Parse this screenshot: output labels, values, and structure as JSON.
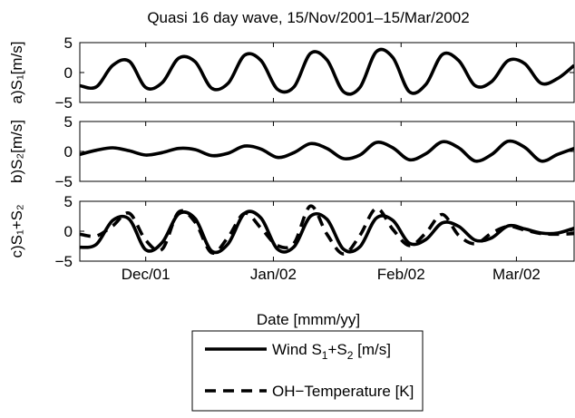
{
  "figure": {
    "title": "Quasi 16 day wave,   15/Nov/2001–15/Mar/2002",
    "xlabel": "Date [mmm/yy]",
    "xticks": [
      "Dec/01",
      "Jan/02",
      "Feb/02",
      "Mar/02"
    ],
    "legend": [
      {
        "label_main": "Wind S",
        "sub1": "1",
        "plus": "+S",
        "sub2": "2",
        "units": " [m/s]",
        "style": "solid"
      },
      {
        "label": "OH−Temperature [K]",
        "style": "dashed"
      }
    ]
  },
  "chart_data": [
    {
      "type": "line",
      "panel": "a",
      "ylabel": "a)S₁[m/s]",
      "ylim": [
        -5,
        5
      ],
      "yticks": [
        "5",
        "0",
        "−5"
      ],
      "x": [
        "2001-11-15",
        "2001-11-19",
        "2001-11-23",
        "2001-11-27",
        "2001-12-01",
        "2001-12-05",
        "2001-12-09",
        "2001-12-13",
        "2001-12-17",
        "2001-12-21",
        "2001-12-25",
        "2001-12-29",
        "2002-01-02",
        "2002-01-06",
        "2002-01-10",
        "2002-01-14",
        "2002-01-18",
        "2002-01-22",
        "2002-01-26",
        "2002-01-30",
        "2002-02-03",
        "2002-02-07",
        "2002-02-11",
        "2002-02-15",
        "2002-02-19",
        "2002-02-23",
        "2002-02-27",
        "2002-03-03",
        "2002-03-07",
        "2002-03-11",
        "2002-03-15"
      ],
      "series": [
        {
          "name": "",
          "style": "solid",
          "values": [
            -2.2,
            -2.4,
            1.2,
            1.9,
            -2.5,
            -1.7,
            2.4,
            1.8,
            -2.6,
            -1.8,
            2.9,
            2.0,
            -2.8,
            -2.4,
            3.2,
            2.1,
            -3.2,
            -2.5,
            3.5,
            2.5,
            -3.2,
            -2.0,
            3.0,
            2.0,
            -2.2,
            -1.5,
            2.0,
            1.5,
            -1.8,
            -1.0,
            1.2
          ]
        }
      ]
    },
    {
      "type": "line",
      "panel": "b",
      "ylabel": "b)S₂[m/s]",
      "ylim": [
        -5,
        5
      ],
      "yticks": [
        "5",
        "0",
        "−5"
      ],
      "x": [
        "2001-11-15",
        "2001-11-19",
        "2001-11-23",
        "2001-11-27",
        "2001-12-01",
        "2001-12-05",
        "2001-12-09",
        "2001-12-13",
        "2001-12-17",
        "2001-12-21",
        "2001-12-25",
        "2001-12-29",
        "2002-01-02",
        "2002-01-06",
        "2002-01-10",
        "2002-01-14",
        "2002-01-18",
        "2002-01-22",
        "2002-01-26",
        "2002-01-30",
        "2002-02-03",
        "2002-02-07",
        "2002-02-11",
        "2002-02-15",
        "2002-02-19",
        "2002-02-23",
        "2002-02-27",
        "2002-03-03",
        "2002-03-07",
        "2002-03-11",
        "2002-03-15"
      ],
      "series": [
        {
          "name": "",
          "style": "solid",
          "values": [
            -0.5,
            0.2,
            0.6,
            0.1,
            -0.6,
            -0.2,
            0.5,
            0.3,
            -0.7,
            -0.3,
            0.9,
            0.4,
            -1.0,
            -0.2,
            1.3,
            0.5,
            -1.2,
            -0.6,
            1.5,
            0.6,
            -1.4,
            -0.4,
            1.6,
            0.6,
            -1.6,
            -0.5,
            1.7,
            0.7,
            -1.6,
            -0.5,
            0.5
          ]
        }
      ]
    },
    {
      "type": "line",
      "panel": "c",
      "ylabel": "c)S₁+S₂",
      "ylim": [
        -5,
        5
      ],
      "yticks": [
        "5",
        "0",
        "−5"
      ],
      "xticks": [
        "Dec/01",
        "Jan/02",
        "Feb/02",
        "Mar/02"
      ],
      "x": [
        "2001-11-15",
        "2001-11-19",
        "2001-11-23",
        "2001-11-27",
        "2001-12-01",
        "2001-12-05",
        "2001-12-09",
        "2001-12-13",
        "2001-12-17",
        "2001-12-21",
        "2001-12-25",
        "2001-12-29",
        "2002-01-02",
        "2002-01-06",
        "2002-01-10",
        "2002-01-14",
        "2002-01-18",
        "2002-01-22",
        "2002-01-26",
        "2002-01-30",
        "2002-02-03",
        "2002-02-07",
        "2002-02-11",
        "2002-02-15",
        "2002-02-19",
        "2002-02-23",
        "2002-02-27",
        "2002-03-03",
        "2002-03-07",
        "2002-03-11",
        "2002-03-15"
      ],
      "series": [
        {
          "name": "Wind S₁+S₂ [m/s]",
          "style": "solid",
          "values": [
            -2.7,
            -2.2,
            1.8,
            2.0,
            -3.1,
            -1.9,
            2.9,
            2.1,
            -3.3,
            -2.1,
            3.0,
            2.2,
            -3.0,
            -2.6,
            2.5,
            2.0,
            -3.0,
            -2.6,
            2.2,
            1.8,
            -2.0,
            -1.4,
            1.4,
            0.8,
            -1.5,
            -1.1,
            0.9,
            0.4,
            -0.3,
            -0.3,
            0.5
          ]
        },
        {
          "name": "OH−Temperature [K]",
          "style": "dashed",
          "values": [
            -0.5,
            -0.8,
            0.9,
            3.0,
            -1.5,
            -3.0,
            3.2,
            1.5,
            -3.6,
            -1.0,
            3.0,
            0.5,
            -2.4,
            -2.0,
            4.2,
            -0.5,
            -3.8,
            -0.7,
            3.8,
            0.3,
            -2.4,
            -0.3,
            2.8,
            -0.7,
            -2.1,
            -0.3,
            0.8,
            0.2,
            -0.4,
            -0.5,
            -0.4
          ]
        }
      ]
    }
  ]
}
